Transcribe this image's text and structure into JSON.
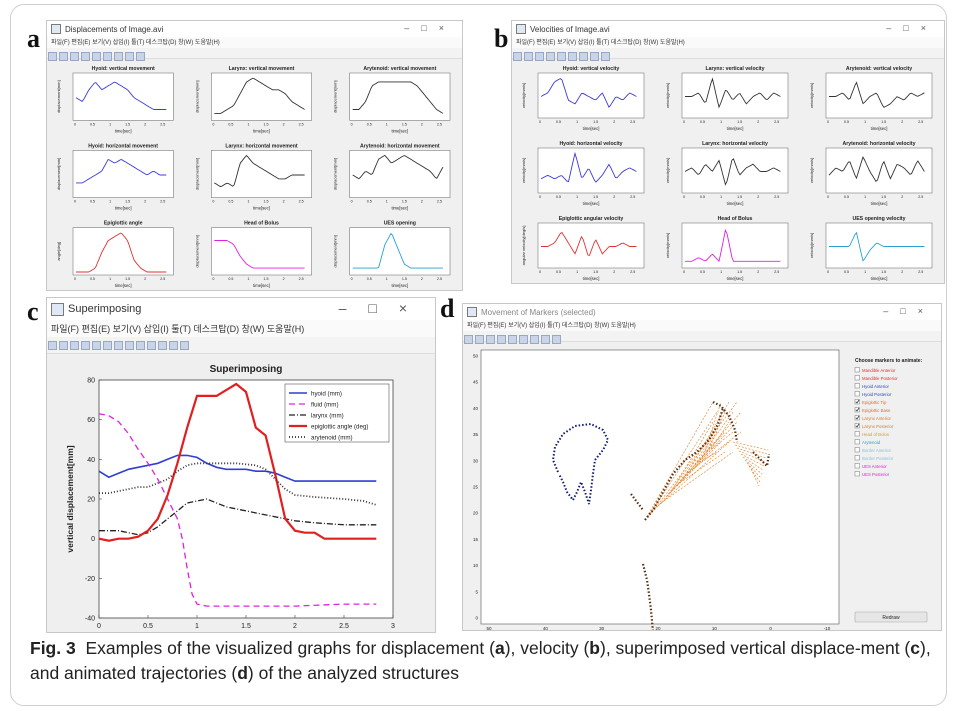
{
  "figure": {
    "caption_label": "Fig. 3",
    "caption_text": "Examples of the visualized graphs for displacement (a), velocity (b), superimposed vertical displacement (c), and animated trajectories (d) of the analyzed structures",
    "caption_parts": [
      "Examples of the visualized graphs for displacement (",
      "a",
      "), velocity (",
      "b",
      "), superimposed vertical displace-ment (",
      "c",
      "), and animated trajectories (",
      "d",
      ") of the analyzed structures"
    ]
  },
  "panel_a": {
    "letter": "a",
    "window_title": "Displacements of Image.avi",
    "menu": "파일(F)  편집(E)  보기(V)  삽입(I)  툴(T)  데스크탑(D)  창(W)  도움말(H)",
    "xlabel": "time[sec]",
    "plots": [
      {
        "title": "Hyoid: vertical movement",
        "ylabel": "displacement[mm]",
        "color": "#3b3bd6"
      },
      {
        "title": "Larynx: vertical movement",
        "ylabel": "displacement[mm]",
        "color": "#333333"
      },
      {
        "title": "Arytenoid: vertical movement",
        "ylabel": "displacement[mm]",
        "color": "#333333"
      },
      {
        "title": "Hyoid: horizontal movement",
        "ylabel": "displacement[mm]",
        "color": "#3b3bd6"
      },
      {
        "title": "Larynx: horizontal movement",
        "ylabel": "displacement[mm]",
        "color": "#333333"
      },
      {
        "title": "Arytenoid: horizontal movement",
        "ylabel": "displacement[mm]",
        "color": "#333333"
      },
      {
        "title": "Epiglottic angle",
        "ylabel": "angle[deg]",
        "color": "#e03030"
      },
      {
        "title": "Head of Bolus",
        "ylabel": "displacement[mm]",
        "color": "#e020e0"
      },
      {
        "title": "UES opening",
        "ylabel": "displacement[mm]",
        "color": "#2a9fd6"
      }
    ]
  },
  "panel_b": {
    "letter": "b",
    "window_title": "Velocities of Image.avi",
    "menu": "파일(F)  편집(E)  보기(V)  삽입(I)  툴(T)  데스크탑(D)  창(W)  도움말(H)",
    "xlabel": "time[sec]",
    "plots": [
      {
        "title": "Hyoid: vertical velocity",
        "ylabel": "velocity[mm/s]",
        "color": "#3b3bd6"
      },
      {
        "title": "Larynx: vertical velocity",
        "ylabel": "velocity[mm/s]",
        "color": "#333333"
      },
      {
        "title": "Arytenoid: vertical velocity",
        "ylabel": "velocity[mm/s]",
        "color": "#333333"
      },
      {
        "title": "Hyoid: horizontal velocity",
        "ylabel": "velocity[mm/s]",
        "color": "#3b3bd6"
      },
      {
        "title": "Larynx: horizontal velocity",
        "ylabel": "velocity[mm/s]",
        "color": "#333333"
      },
      {
        "title": "Arytenoid: horizontal velocity",
        "ylabel": "velocity[mm/s]",
        "color": "#333333"
      },
      {
        "title": "Epiglottic angular velocity",
        "ylabel": "angular velocity[deg/s]",
        "color": "#e03030"
      },
      {
        "title": "Head of Bolus",
        "ylabel": "velocity[mm/s]",
        "color": "#e020e0"
      },
      {
        "title": "UES opening velocity",
        "ylabel": "velocity[mm/s]",
        "color": "#2a9fd6"
      }
    ]
  },
  "panel_c": {
    "letter": "c",
    "window_title": "Superimposing",
    "menu": "파일(F)   편집(E)   보기(V)   삽입(I)   툴(T)   데스크탑(D)   창(W)   도움말(H)",
    "chart_data": {
      "type": "line",
      "title": "Superimposing",
      "xlabel": "time[sec]",
      "ylabel": "vertical displacement[mm]",
      "xlim": [
        0,
        3
      ],
      "ylim": [
        -40,
        80
      ],
      "xticks": [
        "0",
        "0.5",
        "1",
        "1.5",
        "2",
        "2.5",
        "3"
      ],
      "yticks": [
        "80",
        "60",
        "40",
        "20",
        "0",
        "-20",
        "-40"
      ],
      "legend_position": "top-right",
      "series": [
        {
          "name": "hyoid (mm)",
          "color": "#2f3fd0",
          "dash": "",
          "width": 1.6,
          "x": [
            0,
            0.1,
            0.2,
            0.3,
            0.4,
            0.5,
            0.6,
            0.7,
            0.8,
            0.9,
            1.0,
            1.1,
            1.2,
            1.3,
            1.4,
            1.5,
            1.6,
            1.7,
            1.8,
            1.9,
            2.0,
            2.2,
            2.4,
            2.6,
            2.83
          ],
          "y": [
            34,
            31,
            33,
            35,
            36,
            37,
            38,
            40,
            42,
            42,
            41,
            38,
            36,
            35,
            35,
            35,
            34,
            34,
            33,
            31,
            29,
            29,
            29,
            29,
            29
          ]
        },
        {
          "name": "fluid (mm)",
          "color": "#e020e0",
          "dash": "6 4",
          "width": 1.3,
          "x": [
            0,
            0.1,
            0.2,
            0.3,
            0.4,
            0.5,
            0.6,
            0.7,
            0.8,
            0.85,
            0.9,
            0.95,
            1.0,
            1.1,
            1.3,
            1.6,
            2.0,
            2.5,
            2.83
          ],
          "y": [
            63,
            62,
            59,
            53,
            45,
            38,
            30,
            20,
            10,
            0,
            -15,
            -28,
            -33,
            -34,
            -34,
            -34,
            -34,
            -33,
            -33
          ]
        },
        {
          "name": "larynx (mm)",
          "color": "#222222",
          "dash": "6 2 1 2",
          "width": 1.3,
          "x": [
            0,
            0.2,
            0.3,
            0.4,
            0.5,
            0.6,
            0.7,
            0.8,
            0.9,
            1.0,
            1.1,
            1.2,
            1.3,
            1.5,
            1.7,
            1.9,
            2.0,
            2.2,
            2.5,
            2.83
          ],
          "y": [
            4,
            4,
            3,
            2,
            3,
            6,
            10,
            14,
            18,
            19,
            20,
            18,
            16,
            14,
            12,
            10,
            9,
            8,
            7,
            7
          ]
        },
        {
          "name": "epiglottic angle (deg)",
          "color": "#e02020",
          "dash": "",
          "width": 2.2,
          "x": [
            0,
            0.1,
            0.2,
            0.3,
            0.4,
            0.5,
            0.6,
            0.7,
            0.8,
            0.9,
            1.0,
            1.1,
            1.2,
            1.3,
            1.4,
            1.5,
            1.6,
            1.7,
            1.8,
            1.9,
            2.0,
            2.1,
            2.2,
            2.3,
            2.5,
            2.83
          ],
          "y": [
            0,
            -1,
            0,
            0,
            1,
            4,
            10,
            22,
            38,
            56,
            72,
            72,
            72,
            75,
            78,
            74,
            56,
            52,
            32,
            10,
            4,
            3,
            3,
            0,
            0,
            0
          ]
        },
        {
          "name": "arytenoid (mm)",
          "color": "#333333",
          "dash": "1 2",
          "width": 1.8,
          "x": [
            0,
            0.1,
            0.2,
            0.3,
            0.4,
            0.5,
            0.6,
            0.7,
            0.8,
            0.9,
            1.0,
            1.1,
            1.2,
            1.4,
            1.6,
            1.7,
            1.8,
            1.9,
            2.0,
            2.2,
            2.5,
            2.7,
            2.83
          ],
          "y": [
            23,
            23,
            24,
            25,
            26,
            26,
            28,
            30,
            34,
            37,
            38,
            38,
            38,
            38,
            37,
            35,
            30,
            25,
            22,
            21,
            20,
            19,
            17
          ]
        }
      ]
    }
  },
  "panel_d": {
    "letter": "d",
    "window_title": "Movement of Markers (selected)",
    "menu": "파일(F)  편집(E)  보기(V)  삽입(I)  툴(T)  데스크탑(D)  창(W)  도움말(H)",
    "xticks": [
      "50",
      "40",
      "30",
      "20",
      "10",
      "0",
      "-10"
    ],
    "yticks": [
      "50",
      "45",
      "40",
      "35",
      "30",
      "25",
      "20",
      "15",
      "10",
      "5",
      "0"
    ],
    "marker_header": "Choose markers to animate:",
    "markers": [
      {
        "label": "Mandible Anterior",
        "color": "#e03030",
        "checked": false
      },
      {
        "label": "Mandible Posterior",
        "color": "#e03030",
        "checked": false
      },
      {
        "label": "Hyoid Anterior",
        "color": "#2a3fd0",
        "checked": false
      },
      {
        "label": "Hyoid Posterior",
        "color": "#2a3fd0",
        "checked": false
      },
      {
        "label": "Epiglottic Tip",
        "color": "#e07020",
        "checked": true
      },
      {
        "label": "Epiglottic Base",
        "color": "#e07020",
        "checked": true
      },
      {
        "label": "Larynx Anterior",
        "color": "#d08030",
        "checked": true
      },
      {
        "label": "Larynx Posterior",
        "color": "#d08030",
        "checked": true
      },
      {
        "label": "Head of Bolus",
        "color": "#d0a030",
        "checked": false
      },
      {
        "label": "Arytenoid",
        "color": "#30a0d0",
        "checked": false
      },
      {
        "label": "Border Anterior",
        "color": "#8ac0d8",
        "checked": false
      },
      {
        "label": "Border Posterior",
        "color": "#8ac0d8",
        "checked": false
      },
      {
        "label": "UES Anterior",
        "color": "#e020e0",
        "checked": false
      },
      {
        "label": "UES Posterior",
        "color": "#e020e0",
        "checked": false
      }
    ],
    "button_label": "Redraw"
  }
}
